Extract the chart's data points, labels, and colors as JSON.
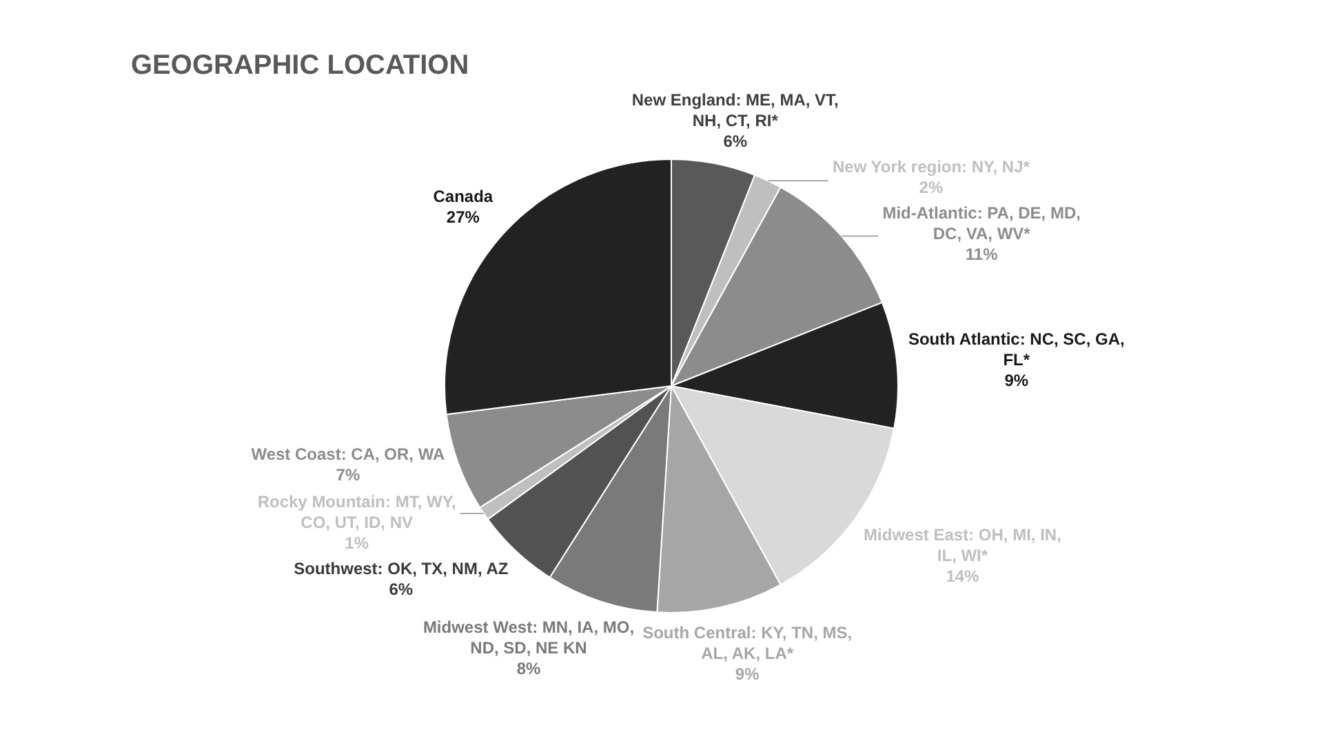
{
  "chart_data": {
    "type": "pie",
    "title": "GEOGRAPHIC LOCATION",
    "categories": [
      "New England: ME, MA, VT, NH, CT, RI*",
      "New York region: NY, NJ*",
      "Mid-Atlantic: PA, DE, MD, DC, VA, WV*",
      "South Atlantic: NC, SC, GA, FL*",
      "Midwest East: OH, MI, IN, IL, WI*",
      "South Central: KY, TN, MS, AL, AK, LA*",
      "Midwest West: MN, IA, MO, ND, SD, NE KN",
      "Southwest: OK, TX, NM, AZ",
      "Rocky Mountain: MT, WY, CO, UT, ID, NV",
      "West Coast: CA, OR, WA",
      "Canada"
    ],
    "values": [
      6,
      2,
      11,
      9,
      14,
      9,
      8,
      6,
      1,
      7,
      27
    ],
    "colors": [
      "#595959",
      "#bfbfbf",
      "#8c8c8c",
      "#222222",
      "#d9d9d9",
      "#a6a6a6",
      "#7a7a7a",
      "#525252",
      "#bfbfbf",
      "#8c8c8c",
      "#222222"
    ],
    "value_labels": [
      "6%",
      "2%",
      "11%",
      "9%",
      "14%",
      "9%",
      "8%",
      "6%",
      "1%",
      "7%",
      "27%"
    ]
  }
}
